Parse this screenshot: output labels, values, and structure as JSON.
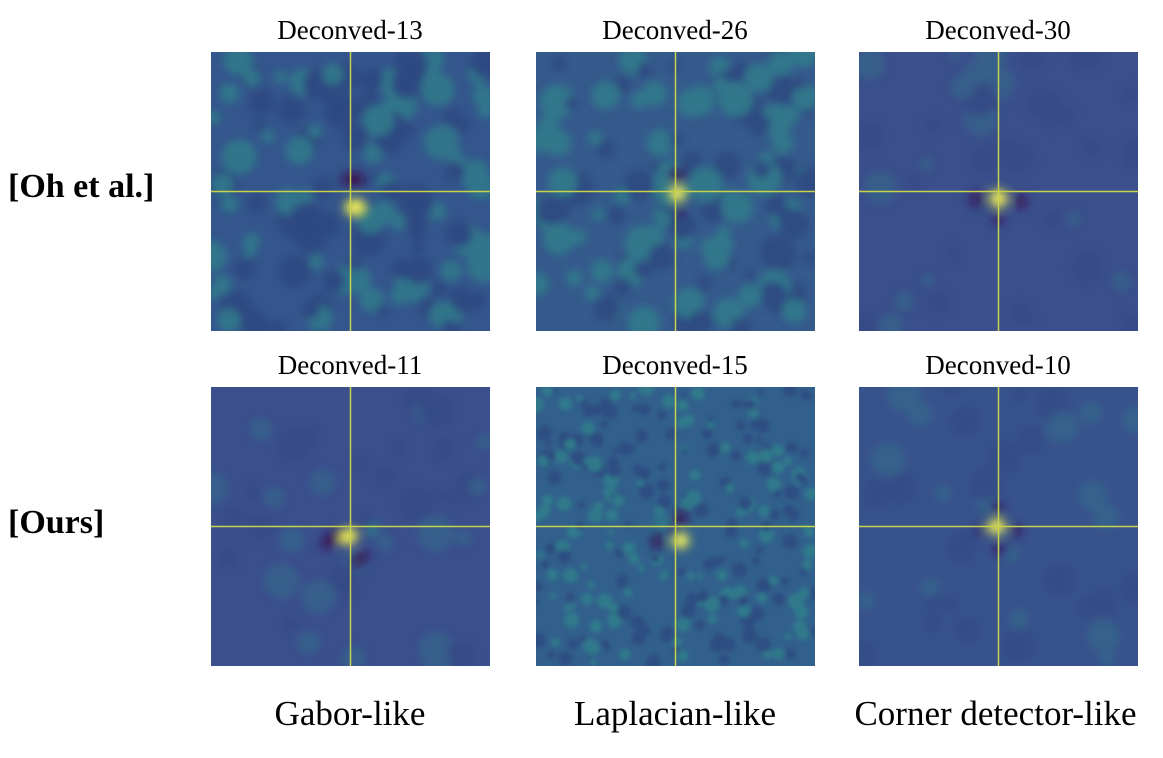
{
  "row_labels": [
    "[Oh et al.]",
    "[Ours]"
  ],
  "panels": [
    {
      "title": "Deconved-13",
      "pattern": "gabor-weak",
      "background": "#34568c",
      "bordered": false
    },
    {
      "title": "Deconved-26",
      "pattern": "laplacian-weak",
      "background": "#355a8c",
      "bordered": false
    },
    {
      "title": "Deconved-30",
      "pattern": "corner-smooth",
      "background": "#3a4f8b",
      "bordered": false
    },
    {
      "title": "Deconved-11",
      "pattern": "gabor-sharp",
      "background": "#3a4f8c",
      "bordered": true
    },
    {
      "title": "Deconved-15",
      "pattern": "laplacian-noisy",
      "background": "#32608c",
      "bordered": false
    },
    {
      "title": "Deconved-10",
      "pattern": "corner-sharp",
      "background": "#38528c",
      "bordered": false
    }
  ],
  "column_captions": [
    "Gabor-like",
    "Laplacian-like",
    "Corner detector-like"
  ],
  "colors": {
    "crosshair": "#c8d24a",
    "peak": "#e8e63a",
    "trough": "#3b0f4f",
    "texture_light": "#2d8f8a"
  }
}
